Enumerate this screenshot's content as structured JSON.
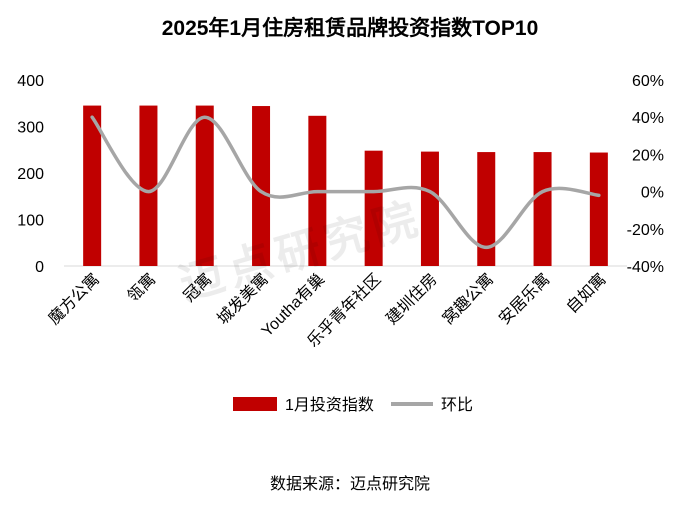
{
  "chart_data": {
    "type": "bar",
    "title": "2025年1月住房租赁品牌投资指数TOP10",
    "categories": [
      "魔方公寓",
      "瓴寓",
      "冠寓",
      "城发美寓",
      "Youtha有巢",
      "乐乎青年社区",
      "建圳住房",
      "窝趣公寓",
      "安居乐寓",
      "自如寓"
    ],
    "series": [
      {
        "name": "1月投资指数",
        "type": "bar",
        "axis": "left",
        "color": "#c00000",
        "values": [
          345,
          345,
          345,
          344,
          323,
          248,
          246,
          245,
          245,
          244
        ]
      },
      {
        "name": "环比",
        "type": "line",
        "axis": "right",
        "color": "#a6a6a6",
        "smooth": true,
        "values": [
          40,
          0,
          40,
          0,
          0,
          0,
          0,
          -30,
          0,
          -2
        ]
      }
    ],
    "y_left": {
      "min": 0,
      "max": 400,
      "ticks": [
        0,
        100,
        200,
        300,
        400
      ]
    },
    "y_right": {
      "min": -40,
      "max": 60,
      "ticks": [
        -40,
        -20,
        0,
        20,
        40,
        60
      ],
      "tick_suffix": "%"
    },
    "grid": false,
    "legend_position": "bottom"
  },
  "source": "数据来源：迈点研究院",
  "watermark": "迈点研究院"
}
